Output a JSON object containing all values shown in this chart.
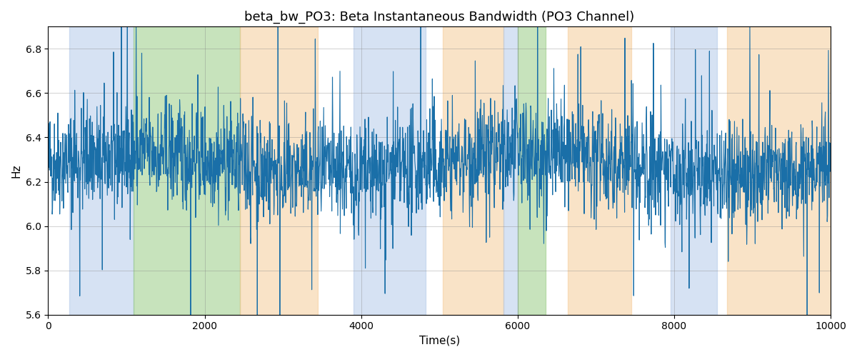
{
  "title": "beta_bw_PO3: Beta Instantaneous Bandwidth (PO3 Channel)",
  "xlabel": "Time(s)",
  "ylabel": "Hz",
  "xlim": [
    0,
    10000
  ],
  "ylim": [
    5.6,
    6.9
  ],
  "line_color": "#1a6fa8",
  "line_width": 0.8,
  "background_color": "#ffffff",
  "grid": true,
  "seed": 42,
  "n_points": 2500,
  "mean": 6.28,
  "std": 0.12,
  "colored_bands": [
    {
      "xmin": 270,
      "xmax": 1090,
      "color": "#aec6e8",
      "alpha": 0.5
    },
    {
      "xmin": 1090,
      "xmax": 2450,
      "color": "#90c97a",
      "alpha": 0.5
    },
    {
      "xmin": 2450,
      "xmax": 3450,
      "color": "#f5c890",
      "alpha": 0.5
    },
    {
      "xmin": 3900,
      "xmax": 4820,
      "color": "#aec6e8",
      "alpha": 0.5
    },
    {
      "xmin": 5045,
      "xmax": 5820,
      "color": "#f5c890",
      "alpha": 0.5
    },
    {
      "xmin": 5820,
      "xmax": 6000,
      "color": "#aec6e8",
      "alpha": 0.5
    },
    {
      "xmin": 6000,
      "xmax": 6360,
      "color": "#90c97a",
      "alpha": 0.5
    },
    {
      "xmin": 6640,
      "xmax": 7450,
      "color": "#f5c890",
      "alpha": 0.5
    },
    {
      "xmin": 7955,
      "xmax": 8545,
      "color": "#aec6e8",
      "alpha": 0.5
    },
    {
      "xmin": 8680,
      "xmax": 10000,
      "color": "#f5c890",
      "alpha": 0.5
    }
  ]
}
